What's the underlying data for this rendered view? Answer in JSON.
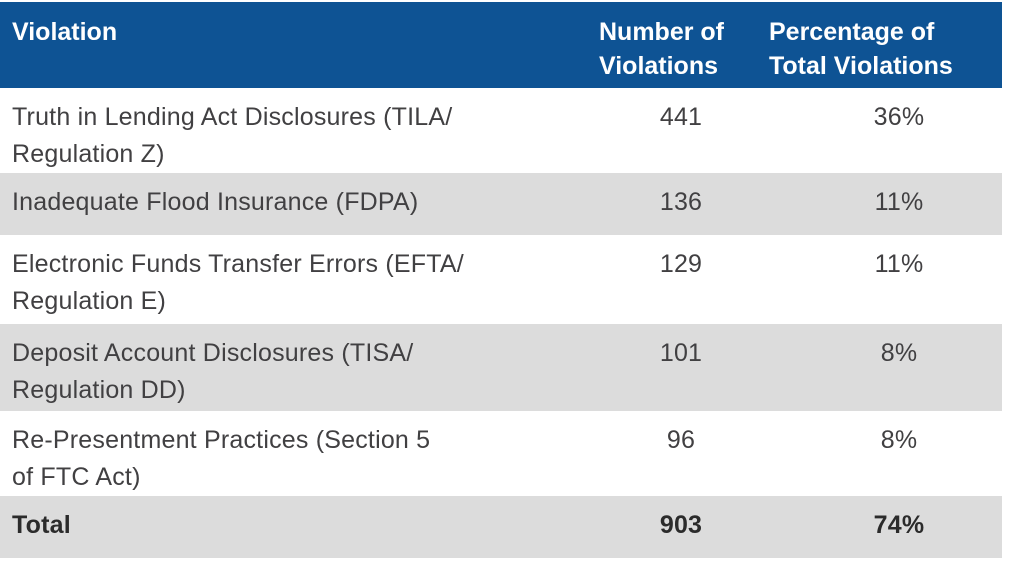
{
  "chart_data": {
    "type": "table",
    "columns": [
      "Violation",
      "Number of\nViolations",
      "Percentage of\nTotal Violations"
    ],
    "rows": [
      [
        "Truth in Lending Act Disclosures (TILA/\nRegulation Z)",
        "441",
        "36%"
      ],
      [
        "Inadequate Flood Insurance (FDPA)",
        "136",
        "11%"
      ],
      [
        "Electronic Funds Transfer Errors (EFTA/\nRegulation E)",
        "129",
        "11%"
      ],
      [
        "Deposit Account Disclosures (TISA/\nRegulation DD)",
        "101",
        "8%"
      ],
      [
        "Re-Presentment Practices (Section 5\nof FTC Act)",
        "96",
        "8%"
      ]
    ],
    "total_row": [
      "Total",
      "903",
      "74%"
    ],
    "numeric": {
      "violation_counts": [
        441,
        136,
        129,
        101,
        96
      ],
      "violation_percentages": [
        36,
        11,
        11,
        8,
        8
      ],
      "total_count": 903,
      "total_percentage": 74
    },
    "layout_hints": {
      "header_position": "top",
      "zebra_striping": true,
      "grid": false
    },
    "colors": {
      "header_bg": "#0e5394",
      "header_text": "#ffffff",
      "alt_row_bg": "#dcdcdc",
      "body_text": "#414042",
      "total_text": "#2b2b2b"
    }
  }
}
